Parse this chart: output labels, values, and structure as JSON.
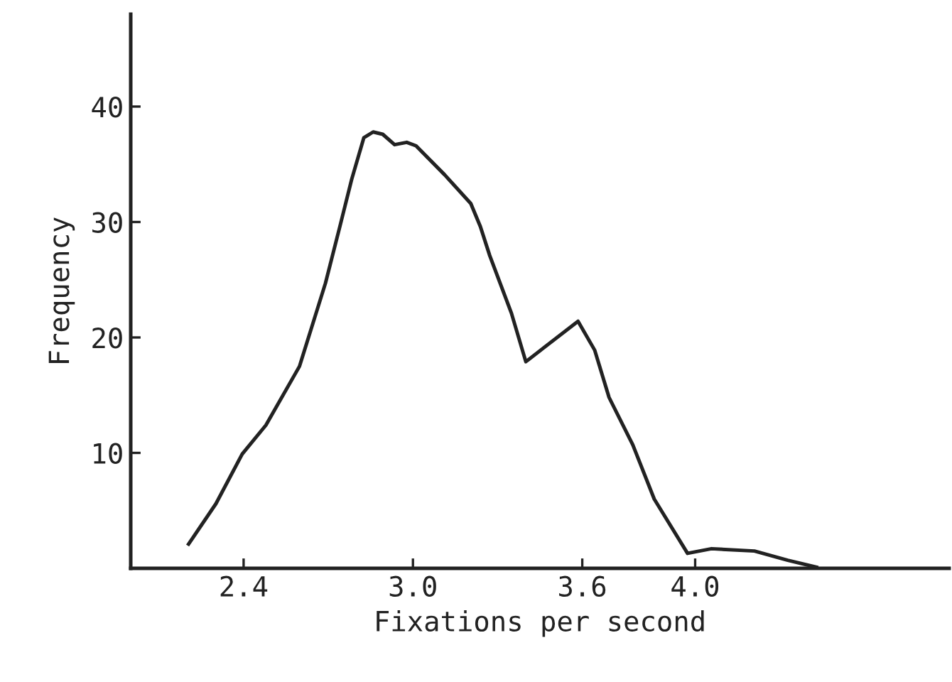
{
  "chart_data": {
    "type": "line",
    "xlabel": "Fixations per second",
    "ylabel": "Frequency",
    "xlim": [
      2.0,
      4.9
    ],
    "ylim": [
      0,
      48
    ],
    "xticks": [
      2.4,
      {
        "value": 3.0,
        "label": "3.0"
      },
      3.6,
      {
        "value": 4.0,
        "label": "4.0"
      }
    ],
    "yticks": [
      10,
      20,
      30,
      40
    ],
    "grid": false,
    "marker": "none",
    "line_style": "solid",
    "series": [
      {
        "color": "#222222",
        "x": [
          2.205,
          2.302,
          2.395,
          2.479,
          2.598,
          2.69,
          2.741,
          2.783,
          2.826,
          2.859,
          2.893,
          2.935,
          2.978,
          3.011,
          3.112,
          3.205,
          3.239,
          3.272,
          3.349,
          3.4,
          3.585,
          3.644,
          3.695,
          3.779,
          3.855,
          3.973,
          4.058,
          4.21,
          4.328,
          4.43
        ],
        "values": [
          2.1,
          5.6,
          9.9,
          12.4,
          17.5,
          24.7,
          29.6,
          33.7,
          37.3,
          37.8,
          37.6,
          36.7,
          36.9,
          36.6,
          34.1,
          31.6,
          29.6,
          27.1,
          22.1,
          17.9,
          21.4,
          18.9,
          14.8,
          10.7,
          6.0,
          1.3,
          1.7,
          1.5,
          0.7,
          0.1
        ]
      }
    ]
  }
}
